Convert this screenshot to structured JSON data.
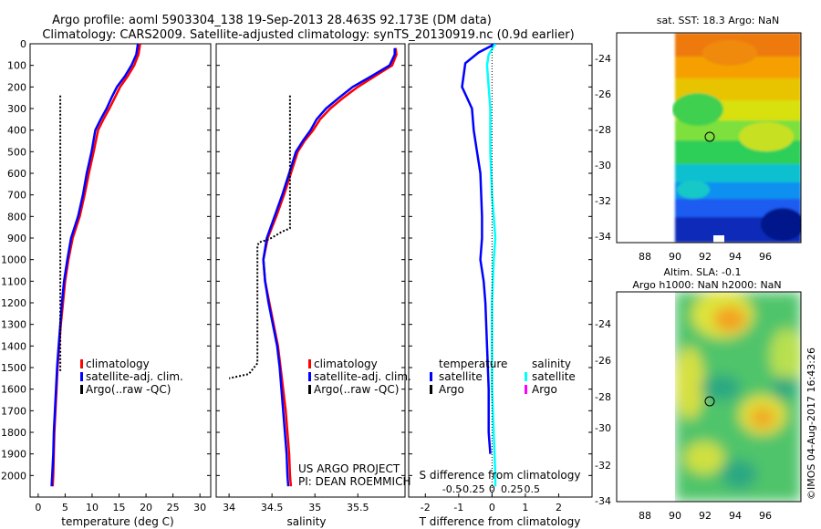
{
  "title_line1": "Argo profile: aoml 5903304_138 19-Sep-2013 28.463S 92.173E (DM data)",
  "title_line2": "Climatology: CARS2009. Satellite-adjusted climatology: synTS_20130919.nc (0.9d earlier)",
  "colors": {
    "climatology": "#ff0000",
    "satellite": "#0000ff",
    "argo": "#000000",
    "salinity_satellite": "#00ffff",
    "salinity_argo": "#ff00ff"
  },
  "chart_data": [
    {
      "type": "line",
      "name": "temperature_profile",
      "xlabel": "temperature (deg C)",
      "ylabel": "",
      "xlim": [
        -1.5,
        32
      ],
      "ylim": [
        2100,
        0
      ],
      "xticks": [
        0,
        5,
        10,
        15,
        20,
        25,
        30
      ],
      "yticks": [
        0,
        100,
        200,
        300,
        400,
        500,
        600,
        700,
        800,
        900,
        1000,
        1100,
        1200,
        1300,
        1400,
        1500,
        1600,
        1700,
        1800,
        1900,
        2000
      ],
      "legend": [
        "climatology",
        "satellite-adj. clim.",
        "Argo(..raw -QC)"
      ],
      "series": [
        {
          "name": "climatology",
          "style": "solid",
          "points": [
            [
              18.9,
              0
            ],
            [
              18.6,
              50
            ],
            [
              17.8,
              100
            ],
            [
              16.6,
              150
            ],
            [
              15.2,
              200
            ],
            [
              14.2,
              250
            ],
            [
              13.2,
              300
            ],
            [
              12.1,
              350
            ],
            [
              11.1,
              400
            ],
            [
              10.3,
              500
            ],
            [
              9.4,
              600
            ],
            [
              8.6,
              700
            ],
            [
              7.7,
              800
            ],
            [
              6.4,
              900
            ],
            [
              5.6,
              1000
            ],
            [
              5.0,
              1100
            ],
            [
              4.6,
              1200
            ],
            [
              4.2,
              1300
            ],
            [
              3.9,
              1400
            ],
            [
              3.6,
              1500
            ],
            [
              3.4,
              1600
            ],
            [
              3.2,
              1700
            ],
            [
              3.0,
              1800
            ],
            [
              2.9,
              1900
            ],
            [
              2.8,
              2000
            ],
            [
              2.7,
              2050
            ]
          ]
        },
        {
          "name": "satellite-adj. clim.",
          "style": "solid",
          "points": [
            [
              18.5,
              0
            ],
            [
              18.2,
              50
            ],
            [
              17.3,
              100
            ],
            [
              16.1,
              150
            ],
            [
              14.6,
              200
            ],
            [
              13.6,
              250
            ],
            [
              12.7,
              300
            ],
            [
              11.6,
              350
            ],
            [
              10.6,
              400
            ],
            [
              9.9,
              500
            ],
            [
              9.0,
              600
            ],
            [
              8.3,
              700
            ],
            [
              7.4,
              800
            ],
            [
              6.1,
              900
            ],
            [
              5.4,
              1000
            ],
            [
              4.8,
              1100
            ],
            [
              4.4,
              1200
            ],
            [
              4.1,
              1300
            ],
            [
              3.8,
              1400
            ],
            [
              3.5,
              1500
            ],
            [
              3.3,
              1600
            ],
            [
              3.1,
              1700
            ],
            [
              2.9,
              1800
            ],
            [
              2.8,
              1900
            ],
            [
              2.6,
              2000
            ],
            [
              2.5,
              2050
            ]
          ]
        },
        {
          "name": "Argo(..raw -QC)",
          "style": "dotted",
          "points": [
            [
              4.1,
              240
            ],
            [
              4.1,
              1520
            ]
          ]
        }
      ]
    },
    {
      "type": "line",
      "name": "salinity_profile",
      "xlabel": "salinity",
      "ylabel": "",
      "xlim": [
        33.85,
        36.05
      ],
      "ylim": [
        2100,
        0
      ],
      "xticks": [
        34,
        34.5,
        35,
        35.5
      ],
      "legend": [
        "climatology",
        "satellite-adj. clim.",
        "Argo(..raw -QC)"
      ],
      "series": [
        {
          "name": "climatology",
          "style": "solid",
          "points": [
            [
              35.94,
              20
            ],
            [
              35.95,
              50
            ],
            [
              35.9,
              100
            ],
            [
              35.7,
              150
            ],
            [
              35.5,
              200
            ],
            [
              35.33,
              250
            ],
            [
              35.18,
              300
            ],
            [
              35.06,
              350
            ],
            [
              34.98,
              400
            ],
            [
              34.88,
              450
            ],
            [
              34.8,
              500
            ],
            [
              34.72,
              600
            ],
            [
              34.64,
              700
            ],
            [
              34.55,
              800
            ],
            [
              34.45,
              900
            ],
            [
              34.4,
              1000
            ],
            [
              34.42,
              1100
            ],
            [
              34.47,
              1200
            ],
            [
              34.52,
              1300
            ],
            [
              34.57,
              1400
            ],
            [
              34.6,
              1500
            ],
            [
              34.63,
              1600
            ],
            [
              34.66,
              1700
            ],
            [
              34.68,
              1800
            ],
            [
              34.7,
              1900
            ],
            [
              34.71,
              2000
            ],
            [
              34.72,
              2050
            ]
          ]
        },
        {
          "name": "satellite-adj. clim.",
          "style": "solid",
          "points": [
            [
              35.93,
              20
            ],
            [
              35.93,
              50
            ],
            [
              35.87,
              100
            ],
            [
              35.66,
              150
            ],
            [
              35.44,
              200
            ],
            [
              35.28,
              250
            ],
            [
              35.13,
              300
            ],
            [
              35.02,
              350
            ],
            [
              34.95,
              400
            ],
            [
              34.86,
              450
            ],
            [
              34.78,
              500
            ],
            [
              34.7,
              600
            ],
            [
              34.62,
              700
            ],
            [
              34.53,
              800
            ],
            [
              34.44,
              900
            ],
            [
              34.4,
              1000
            ],
            [
              34.42,
              1100
            ],
            [
              34.46,
              1200
            ],
            [
              34.51,
              1300
            ],
            [
              34.56,
              1400
            ],
            [
              34.59,
              1500
            ],
            [
              34.61,
              1600
            ],
            [
              34.63,
              1700
            ],
            [
              34.65,
              1800
            ],
            [
              34.67,
              1900
            ],
            [
              34.68,
              2000
            ],
            [
              34.69,
              2050
            ]
          ]
        },
        {
          "name": "Argo(..raw -QC)",
          "style": "dotted",
          "points": [
            [
              34.71,
              240
            ],
            [
              34.71,
              855
            ],
            [
              34.62,
              870
            ],
            [
              34.47,
              905
            ],
            [
              34.35,
              920
            ],
            [
              34.33,
              935
            ],
            [
              34.33,
              1480
            ],
            [
              34.23,
              1530
            ],
            [
              34.0,
              1550
            ]
          ]
        }
      ],
      "annotations": [
        "US ARGO PROJECT",
        "PI: DEAN ROEMMICH"
      ]
    },
    {
      "type": "line",
      "name": "difference_profile",
      "xlabel": "T difference from climatology",
      "xlabel_top": "S difference from climatology",
      "xticks": [
        -2,
        -1,
        0,
        1,
        2
      ],
      "xticks_salinity": [
        "-0.5",
        "-0.25",
        "0",
        "0.25",
        "0.5"
      ],
      "xlim": [
        -2.5,
        3.0
      ],
      "ylim": [
        2100,
        0
      ],
      "legend_temperature_title": "temperature",
      "legend_salinity_title": "salinity",
      "legend_temperature": [
        "satellite",
        "Argo"
      ],
      "legend_salinity": [
        "satellite",
        "Argo"
      ],
      "series": [
        {
          "name": "temperature satellite",
          "style": "solid",
          "points": [
            [
              0.1,
              0
            ],
            [
              -0.4,
              40
            ],
            [
              -0.8,
              90
            ],
            [
              -0.9,
              200
            ],
            [
              -0.6,
              300
            ],
            [
              -0.55,
              400
            ],
            [
              -0.45,
              500
            ],
            [
              -0.35,
              600
            ],
            [
              -0.3,
              800
            ],
            [
              -0.3,
              900
            ],
            [
              -0.35,
              1000
            ],
            [
              -0.25,
              1100
            ],
            [
              -0.2,
              1200
            ],
            [
              -0.15,
              1400
            ],
            [
              -0.1,
              1600
            ],
            [
              -0.1,
              1800
            ],
            [
              -0.05,
              1900
            ]
          ]
        },
        {
          "name": "salinity satellite",
          "style": "solid",
          "points": [
            [
              0.1,
              0
            ],
            [
              -0.1,
              50
            ],
            [
              -0.15,
              100
            ],
            [
              -0.1,
              200
            ],
            [
              -0.05,
              300
            ],
            [
              -0.05,
              500
            ],
            [
              0.0,
              700
            ],
            [
              0.05,
              800
            ],
            [
              0.1,
              900
            ],
            [
              0.05,
              1000
            ],
            [
              0.0,
              1200
            ],
            [
              0.0,
              1600
            ],
            [
              0.05,
              1800
            ],
            [
              0.1,
              2000
            ],
            [
              0.1,
              2050
            ]
          ]
        }
      ]
    },
    {
      "type": "heatmap",
      "name": "sst_map",
      "title": "sat. SST: 18.3 Argo: NaN",
      "xticks": [
        "88",
        "90",
        "92",
        "94",
        "96"
      ],
      "yticks": [
        "-24",
        "-26",
        "-28",
        "-30",
        "-32",
        "-34"
      ],
      "marker": [
        92.173,
        -28.463
      ]
    },
    {
      "type": "heatmap",
      "name": "sla_map",
      "title_line1": "Altim. SLA: -0.1",
      "title_line2": "Argo h1000: NaN h2000: NaN",
      "xticks": [
        "88",
        "90",
        "92",
        "94",
        "96"
      ],
      "yticks": [
        "-24",
        "-26",
        "-28",
        "-30",
        "-32",
        "-34"
      ],
      "marker": [
        92.173,
        -28.463
      ]
    }
  ],
  "footer_stamp": "©IMOS 04-Aug-2017 16:43:26"
}
